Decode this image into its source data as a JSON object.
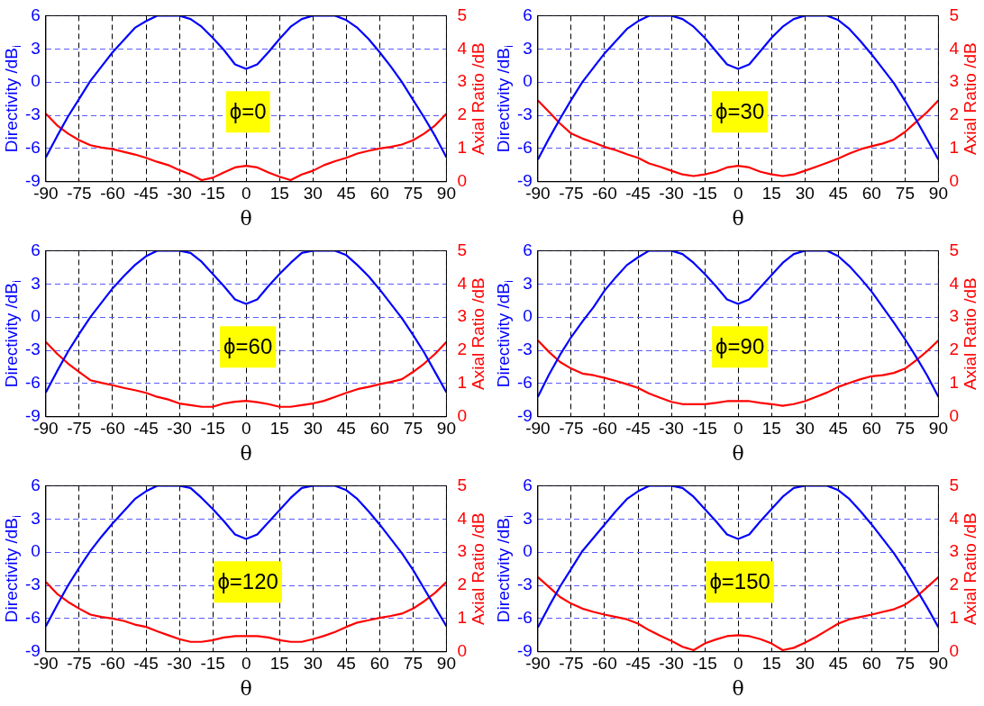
{
  "chart_data": [
    {
      "type": "line",
      "xlabel": "θ",
      "ylabel": "Directivity /dB$_{i}$",
      "y2label": "Axial Ratio /dB",
      "annotations": [
        "ϕ=0"
      ],
      "grid": true,
      "xlim": [
        -90,
        90
      ],
      "xticks": [
        -90,
        -75,
        -60,
        -45,
        -30,
        -15,
        0,
        15,
        30,
        45,
        60,
        75,
        90
      ],
      "ylim": [
        -9,
        6
      ],
      "yticks": [
        -9,
        -6,
        -3,
        0,
        3,
        6
      ],
      "y2lim": [
        0,
        5
      ],
      "y2ticks": [
        0,
        1,
        2,
        3,
        4,
        5
      ],
      "x": [
        -90,
        -85,
        -80,
        -75,
        -70,
        -65,
        -60,
        -55,
        -50,
        -45,
        -40,
        -35,
        -30,
        -25,
        -20,
        -15,
        -10,
        -5,
        0,
        5,
        10,
        15,
        20,
        25,
        30,
        35,
        40,
        45,
        50,
        55,
        60,
        65,
        70,
        75,
        80,
        85,
        90
      ],
      "series": [
        {
          "color": "#0000ff",
          "values": [
            -6.8,
            -4.9,
            -3.1,
            -1.5,
            0.1,
            1.4,
            2.7,
            3.8,
            4.9,
            5.5,
            6,
            6,
            6,
            5.7,
            5.0,
            4.0,
            2.9,
            1.6,
            1.2,
            1.6,
            2.7,
            3.9,
            5.0,
            5.7,
            6,
            6,
            6,
            5.6,
            4.9,
            3.9,
            2.7,
            1.4,
            0.0,
            -1.6,
            -3.2,
            -4.9,
            -6.8
          ]
        },
        {
          "color": "#ff0000",
          "axis": "y2",
          "values": [
            2.05,
            1.7,
            1.45,
            1.25,
            1.1,
            1.03,
            0.98,
            0.9,
            0.82,
            0.72,
            0.6,
            0.5,
            0.35,
            0.22,
            0.05,
            0.12,
            0.28,
            0.43,
            0.48,
            0.43,
            0.28,
            0.15,
            0.05,
            0.22,
            0.33,
            0.5,
            0.62,
            0.72,
            0.85,
            0.93,
            1.0,
            1.05,
            1.12,
            1.25,
            1.45,
            1.7,
            2.05
          ]
        }
      ]
    },
    {
      "type": "line",
      "xlabel": "θ",
      "ylabel": "Directivity /dB$_{i}$",
      "y2label": "Axial Ratio /dB",
      "annotations": [
        "ϕ=30"
      ],
      "grid": true,
      "xlim": [
        -90,
        90
      ],
      "xticks": [
        -90,
        -75,
        -60,
        -45,
        -30,
        -15,
        0,
        15,
        30,
        45,
        60,
        75,
        90
      ],
      "ylim": [
        -9,
        6
      ],
      "yticks": [
        -9,
        -6,
        -3,
        0,
        3,
        6
      ],
      "y2lim": [
        0,
        5
      ],
      "y2ticks": [
        0,
        1,
        2,
        3,
        4,
        5
      ],
      "x": [
        -90,
        -85,
        -80,
        -75,
        -70,
        -65,
        -60,
        -55,
        -50,
        -45,
        -40,
        -35,
        -30,
        -25,
        -20,
        -15,
        -10,
        -5,
        0,
        5,
        10,
        15,
        20,
        25,
        30,
        35,
        40,
        45,
        50,
        55,
        60,
        65,
        70,
        75,
        80,
        85,
        90
      ],
      "series": [
        {
          "color": "#0000ff",
          "values": [
            -7.0,
            -5.1,
            -3.3,
            -1.6,
            0.0,
            1.3,
            2.6,
            3.7,
            4.8,
            5.5,
            6,
            6,
            6,
            5.7,
            5.0,
            4.0,
            2.8,
            1.6,
            1.2,
            1.6,
            2.8,
            4.0,
            5.0,
            5.7,
            6,
            6,
            6,
            5.6,
            4.8,
            3.7,
            2.5,
            1.2,
            -0.1,
            -1.7,
            -3.4,
            -5.2,
            -7.0
          ]
        },
        {
          "color": "#ff0000",
          "axis": "y2",
          "values": [
            2.45,
            2.1,
            1.75,
            1.45,
            1.3,
            1.18,
            1.05,
            0.95,
            0.83,
            0.72,
            0.55,
            0.45,
            0.33,
            0.22,
            0.17,
            0.22,
            0.3,
            0.43,
            0.48,
            0.43,
            0.3,
            0.22,
            0.17,
            0.22,
            0.33,
            0.45,
            0.57,
            0.7,
            0.85,
            0.98,
            1.07,
            1.15,
            1.27,
            1.5,
            1.8,
            2.1,
            2.45
          ]
        }
      ]
    },
    {
      "type": "line",
      "xlabel": "θ",
      "ylabel": "Directivity /dB$_{i}$",
      "y2label": "Axial Ratio /dB",
      "annotations": [
        "ϕ=60"
      ],
      "grid": true,
      "xlim": [
        -90,
        90
      ],
      "xticks": [
        -90,
        -75,
        -60,
        -45,
        -30,
        -15,
        0,
        15,
        30,
        45,
        60,
        75,
        90
      ],
      "ylim": [
        -9,
        6
      ],
      "yticks": [
        -9,
        -6,
        -3,
        0,
        3,
        6
      ],
      "y2lim": [
        0,
        5
      ],
      "y2ticks": [
        0,
        1,
        2,
        3,
        4,
        5
      ],
      "x": [
        -90,
        -85,
        -80,
        -75,
        -70,
        -65,
        -60,
        -55,
        -50,
        -45,
        -40,
        -35,
        -30,
        -25,
        -20,
        -15,
        -10,
        -5,
        0,
        5,
        10,
        15,
        20,
        25,
        30,
        35,
        40,
        45,
        50,
        55,
        60,
        65,
        70,
        75,
        80,
        85,
        90
      ],
      "series": [
        {
          "color": "#0000ff",
          "values": [
            -6.8,
            -4.9,
            -3.1,
            -1.5,
            0.0,
            1.3,
            2.6,
            3.7,
            4.7,
            5.5,
            6,
            6,
            6,
            5.8,
            5.0,
            3.9,
            2.8,
            1.6,
            1.2,
            1.6,
            2.8,
            3.9,
            4.9,
            5.8,
            6,
            6,
            6,
            5.6,
            4.7,
            3.7,
            2.5,
            1.2,
            -0.1,
            -1.6,
            -3.2,
            -5.0,
            -6.8
          ]
        },
        {
          "color": "#ff0000",
          "axis": "y2",
          "values": [
            2.25,
            1.9,
            1.6,
            1.35,
            1.1,
            1.02,
            0.95,
            0.87,
            0.8,
            0.72,
            0.6,
            0.52,
            0.4,
            0.35,
            0.3,
            0.3,
            0.4,
            0.45,
            0.48,
            0.44,
            0.38,
            0.3,
            0.3,
            0.35,
            0.4,
            0.48,
            0.6,
            0.72,
            0.83,
            0.9,
            0.98,
            1.05,
            1.13,
            1.35,
            1.6,
            1.9,
            2.25
          ]
        }
      ]
    },
    {
      "type": "line",
      "xlabel": "θ",
      "ylabel": "Directivity /dB$_{i}$",
      "y2label": "Axial Ratio /dB",
      "annotations": [
        "ϕ=90"
      ],
      "grid": true,
      "xlim": [
        -90,
        90
      ],
      "xticks": [
        -90,
        -75,
        -60,
        -45,
        -30,
        -15,
        0,
        15,
        30,
        45,
        60,
        75,
        90
      ],
      "ylim": [
        -9,
        6
      ],
      "yticks": [
        -9,
        -6,
        -3,
        0,
        3,
        6
      ],
      "y2lim": [
        0,
        5
      ],
      "y2ticks": [
        0,
        1,
        2,
        3,
        4,
        5
      ],
      "x": [
        -90,
        -85,
        -80,
        -75,
        -70,
        -65,
        -60,
        -55,
        -50,
        -45,
        -40,
        -35,
        -30,
        -25,
        -20,
        -15,
        -10,
        -5,
        0,
        5,
        10,
        15,
        20,
        25,
        30,
        35,
        40,
        45,
        50,
        55,
        60,
        65,
        70,
        75,
        80,
        85,
        90
      ],
      "series": [
        {
          "color": "#0000ff",
          "values": [
            -7.2,
            -5.2,
            -3.4,
            -1.8,
            -0.4,
            0.9,
            2.4,
            3.6,
            4.7,
            5.4,
            6,
            6,
            6,
            5.7,
            4.9,
            3.9,
            2.8,
            1.6,
            1.2,
            1.6,
            2.7,
            3.8,
            4.9,
            5.7,
            6,
            6,
            6,
            5.5,
            4.6,
            3.5,
            2.3,
            0.9,
            -0.5,
            -2.0,
            -3.6,
            -5.3,
            -7.2
          ]
        },
        {
          "color": "#ff0000",
          "axis": "y2",
          "values": [
            2.3,
            1.95,
            1.65,
            1.45,
            1.3,
            1.25,
            1.17,
            1.08,
            0.98,
            0.87,
            0.7,
            0.57,
            0.45,
            0.38,
            0.38,
            0.38,
            0.42,
            0.47,
            0.47,
            0.47,
            0.42,
            0.38,
            0.33,
            0.38,
            0.47,
            0.6,
            0.73,
            0.9,
            1.02,
            1.13,
            1.22,
            1.25,
            1.32,
            1.45,
            1.7,
            1.98,
            2.3
          ]
        }
      ]
    },
    {
      "type": "line",
      "xlabel": "θ",
      "ylabel": "Directivity /dB$_{i}$",
      "y2label": "Axial Ratio /dB",
      "annotations": [
        "ϕ=120"
      ],
      "grid": true,
      "xlim": [
        -90,
        90
      ],
      "xticks": [
        -90,
        -75,
        -60,
        -45,
        -30,
        -15,
        0,
        15,
        30,
        45,
        60,
        75,
        90
      ],
      "ylim": [
        -9,
        6
      ],
      "yticks": [
        -9,
        -6,
        -3,
        0,
        3,
        6
      ],
      "y2lim": [
        0,
        5
      ],
      "y2ticks": [
        0,
        1,
        2,
        3,
        4,
        5
      ],
      "x": [
        -90,
        -85,
        -80,
        -75,
        -70,
        -65,
        -60,
        -55,
        -50,
        -45,
        -40,
        -35,
        -30,
        -25,
        -20,
        -15,
        -10,
        -5,
        0,
        5,
        10,
        15,
        20,
        25,
        30,
        35,
        40,
        45,
        50,
        55,
        60,
        65,
        70,
        75,
        80,
        85,
        90
      ],
      "series": [
        {
          "color": "#0000ff",
          "values": [
            -6.7,
            -4.8,
            -3.0,
            -1.4,
            0.1,
            1.4,
            2.6,
            3.7,
            4.8,
            5.5,
            6,
            6,
            6,
            5.8,
            4.9,
            3.9,
            2.8,
            1.6,
            1.2,
            1.6,
            2.7,
            3.8,
            4.9,
            5.8,
            6,
            6,
            6,
            5.6,
            4.8,
            3.7,
            2.5,
            1.2,
            -0.1,
            -1.6,
            -3.3,
            -5.0,
            -6.7
          ]
        },
        {
          "color": "#ff0000",
          "axis": "y2",
          "values": [
            2.1,
            1.75,
            1.5,
            1.3,
            1.12,
            1.05,
            1.0,
            0.93,
            0.82,
            0.75,
            0.62,
            0.5,
            0.38,
            0.3,
            0.3,
            0.35,
            0.43,
            0.47,
            0.47,
            0.47,
            0.43,
            0.35,
            0.3,
            0.3,
            0.38,
            0.48,
            0.6,
            0.75,
            0.88,
            0.95,
            1.02,
            1.08,
            1.15,
            1.3,
            1.52,
            1.78,
            2.1
          ]
        }
      ]
    },
    {
      "type": "line",
      "xlabel": "θ",
      "ylabel": "Directivity /dB$_{i}$",
      "y2label": "Axial Ratio /dB",
      "annotations": [
        "ϕ=150"
      ],
      "grid": true,
      "xlim": [
        -90,
        90
      ],
      "xticks": [
        -90,
        -75,
        -60,
        -45,
        -30,
        -15,
        0,
        15,
        30,
        45,
        60,
        75,
        90
      ],
      "ylim": [
        -9,
        6
      ],
      "yticks": [
        -9,
        -6,
        -3,
        0,
        3,
        6
      ],
      "y2lim": [
        0,
        5
      ],
      "y2ticks": [
        0,
        1,
        2,
        3,
        4,
        5
      ],
      "x": [
        -90,
        -85,
        -80,
        -75,
        -70,
        -65,
        -60,
        -55,
        -50,
        -45,
        -40,
        -35,
        -30,
        -25,
        -20,
        -15,
        -10,
        -5,
        0,
        5,
        10,
        15,
        20,
        25,
        30,
        35,
        40,
        45,
        50,
        55,
        60,
        65,
        70,
        75,
        80,
        85,
        90
      ],
      "series": [
        {
          "color": "#0000ff",
          "values": [
            -6.8,
            -4.9,
            -3.1,
            -1.5,
            0.1,
            1.3,
            2.5,
            3.7,
            4.8,
            5.5,
            6,
            6,
            6,
            5.8,
            5.0,
            3.9,
            2.8,
            1.6,
            1.2,
            1.6,
            2.8,
            3.9,
            5.0,
            5.8,
            6,
            6,
            6,
            5.6,
            4.8,
            3.7,
            2.5,
            1.2,
            -0.1,
            -1.6,
            -3.3,
            -5.0,
            -6.8
          ]
        },
        {
          "color": "#ff0000",
          "axis": "y2",
          "values": [
            2.25,
            1.95,
            1.65,
            1.45,
            1.3,
            1.2,
            1.12,
            1.05,
            0.98,
            0.85,
            0.65,
            0.48,
            0.33,
            0.15,
            0.05,
            0.25,
            0.37,
            0.47,
            0.5,
            0.47,
            0.38,
            0.25,
            0.05,
            0.12,
            0.27,
            0.45,
            0.65,
            0.85,
            0.98,
            1.05,
            1.12,
            1.2,
            1.28,
            1.42,
            1.65,
            1.95,
            2.25
          ]
        }
      ]
    }
  ]
}
